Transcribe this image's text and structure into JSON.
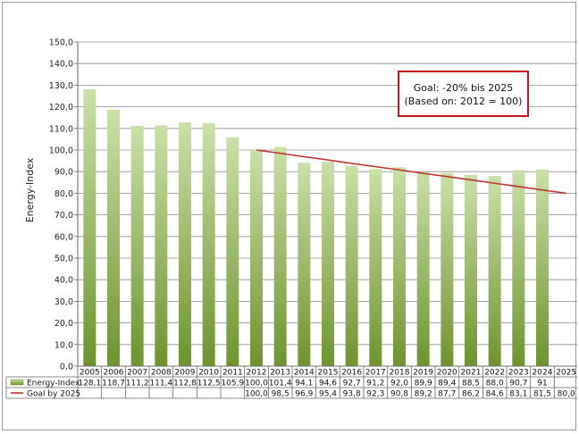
{
  "chart_data": {
    "type": "bar",
    "categories": [
      "2005",
      "2006",
      "2007",
      "2008",
      "2009",
      "2010",
      "2011",
      "2012",
      "2013",
      "2014",
      "2015",
      "2016",
      "2017",
      "2018",
      "2019",
      "2020",
      "2021",
      "2022",
      "2023",
      "2024",
      "2025"
    ],
    "ylabel": "Energy-Index",
    "ylim": [
      0,
      150
    ],
    "yticks": [
      "0,0",
      "10,0",
      "20,0",
      "30,0",
      "40,0",
      "50,0",
      "60,0",
      "70,0",
      "80,0",
      "90,0",
      "100,0",
      "110,0",
      "120,0",
      "130,0",
      "140,0",
      "150,0"
    ],
    "grid": true,
    "series": [
      {
        "name": "Energy-Index",
        "type": "bar",
        "values": [
          128.1,
          118.7,
          111.2,
          111.4,
          112.8,
          112.5,
          105.9,
          100.0,
          101.4,
          94.1,
          94.6,
          92.7,
          91.2,
          92.0,
          89.9,
          89.4,
          88.5,
          88.0,
          90.7,
          91,
          null
        ],
        "labels": [
          "128,1",
          "118,7",
          "111,2",
          "111,4",
          "112,8",
          "112,5",
          "105,9",
          "100,0",
          "101,4",
          "94,1",
          "94,6",
          "92,7",
          "91,2",
          "92,0",
          "89,9",
          "89,4",
          "88,5",
          "88,0",
          "90,7",
          "91",
          ""
        ],
        "color_top": "#c9e0a8",
        "color_bottom": "#6f932f"
      },
      {
        "name": "Goal by 2025",
        "type": "line",
        "values": [
          null,
          null,
          null,
          null,
          null,
          null,
          null,
          100.0,
          98.5,
          96.9,
          95.4,
          93.8,
          92.3,
          90.8,
          89.2,
          87.7,
          86.2,
          84.6,
          83.1,
          81.5,
          80.0
        ],
        "labels": [
          "",
          "",
          "",
          "",
          "",
          "",
          "",
          "100,0",
          "98,5",
          "96,9",
          "95,4",
          "93,8",
          "92,3",
          "90,8",
          "89,2",
          "87,7",
          "86,2",
          "84,6",
          "83,1",
          "81,5",
          "80,0"
        ],
        "color": "#c0302a"
      }
    ],
    "annotation": {
      "line1": "Goal: -20% bis 2025",
      "line2": "(Based on: 2012 = 100)",
      "border_color": "#c4141c"
    }
  }
}
